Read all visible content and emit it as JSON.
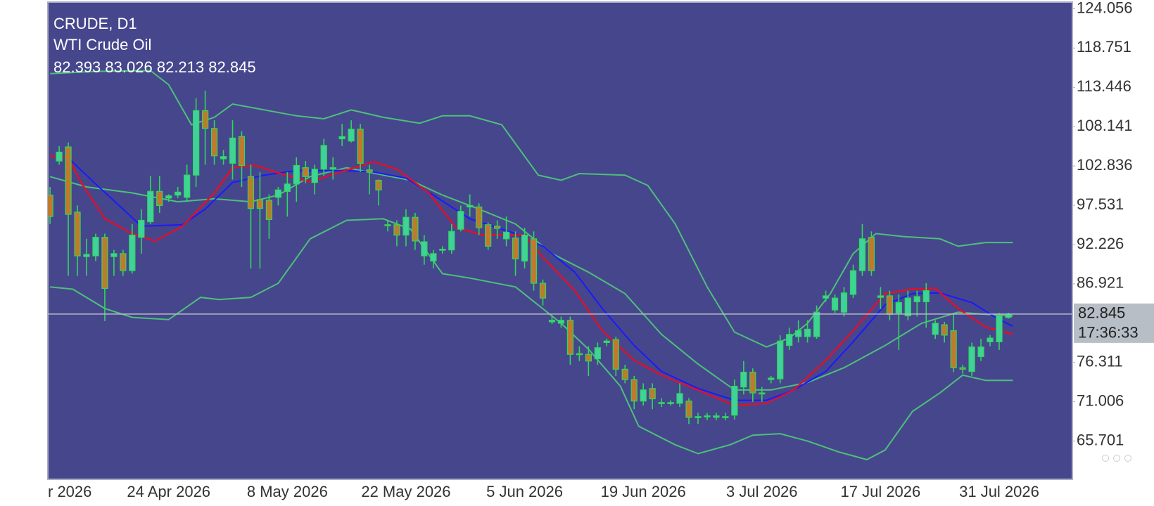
{
  "chart_data": {
    "type": "candlestick",
    "title": "CRUDE, D1",
    "subtitle": "WTI Crude Oil",
    "ohlc": [
      82.393,
      83.026,
      82.213,
      82.845
    ],
    "current_price": {
      "value": 82.845,
      "countdown": "17:36:33"
    },
    "ylim": [
      60.54,
      124.95
    ],
    "yticks": [
      124.056,
      118.751,
      113.446,
      108.141,
      102.836,
      97.531,
      92.226,
      86.921,
      76.311,
      71.006,
      65.701
    ],
    "categories": [
      "r 2026",
      null,
      null,
      null,
      null,
      null,
      null,
      null,
      null,
      null,
      null,
      null,
      null,
      "24 Apr 2026",
      null,
      null,
      null,
      null,
      null,
      null,
      null,
      null,
      null,
      null,
      null,
      null,
      "8 May 2026",
      null,
      null,
      null,
      null,
      null,
      null,
      null,
      null,
      null,
      null,
      null,
      null,
      "22 May 2026",
      null,
      null,
      null,
      null,
      null,
      null,
      null,
      null,
      null,
      null,
      null,
      null,
      "5 Jun 2026",
      null,
      null,
      null,
      null,
      null,
      null,
      null,
      null,
      null,
      null,
      null,
      null,
      "19 Jun 2026",
      null,
      null,
      null,
      null,
      null,
      null,
      null,
      null,
      null,
      null,
      null,
      null,
      "3 Jul 2026",
      null,
      null,
      null,
      null,
      null,
      null,
      null,
      null,
      null,
      null,
      null,
      null,
      "17 Jul 2026",
      null,
      null,
      null,
      null,
      null,
      null,
      null,
      null,
      null,
      null,
      null,
      null,
      "31 Jul 2026",
      null
    ],
    "up_color": "#3fd39a",
    "down_color": "#c07a2c",
    "wick_color": "#2fd85a",
    "candles": [
      [
        98.9,
        100,
        95,
        96.0
      ],
      [
        103.5,
        105.5,
        103,
        104.7
      ],
      [
        105.4,
        106,
        88,
        96.3
      ],
      [
        96.6,
        97.5,
        88,
        90.7
      ],
      [
        90.6,
        93,
        88,
        90.9
      ],
      [
        90.7,
        93.7,
        90,
        93.2
      ],
      [
        93.2,
        93.7,
        81.9,
        86.3
      ],
      [
        90.6,
        91.5,
        88,
        91
      ],
      [
        91,
        91.5,
        88,
        88.7
      ],
      [
        88.7,
        95,
        88.3,
        93.5
      ],
      [
        93.2,
        97,
        91,
        95.5
      ],
      [
        95.3,
        101.5,
        95,
        99.4
      ],
      [
        99.4,
        101.5,
        96.5,
        97.5
      ],
      [
        98.5,
        99,
        98,
        98.8
      ],
      [
        98.9,
        100,
        98.5,
        99.3
      ],
      [
        98.6,
        103,
        98,
        101.6
      ],
      [
        101.6,
        112,
        100,
        110.3
      ],
      [
        110.3,
        113,
        103,
        107.9
      ],
      [
        107.9,
        109,
        103,
        104.2
      ],
      [
        103.8,
        105,
        103,
        104.1
      ],
      [
        103.2,
        109,
        101,
        106.6
      ],
      [
        106.8,
        107.5,
        100,
        102.9
      ],
      [
        101.4,
        103,
        89,
        97.1
      ],
      [
        98.3,
        102,
        89,
        97.1
      ],
      [
        98.2,
        99,
        93,
        95.6
      ],
      [
        98.6,
        100,
        97.5,
        99.6
      ],
      [
        99.4,
        102,
        96,
        100.4
      ],
      [
        100.4,
        104,
        98,
        102.9
      ],
      [
        102.6,
        103.5,
        100.5,
        101.4
      ],
      [
        100.6,
        103,
        99,
        102.4
      ],
      [
        102.4,
        106.5,
        101.5,
        105.6
      ],
      [
        102.4,
        104,
        101,
        102.6
      ],
      [
        106.5,
        108.5,
        105.5,
        106.8
      ],
      [
        106.2,
        109,
        106,
        107.8
      ],
      [
        107.8,
        108.5,
        102,
        103.2
      ],
      [
        102.3,
        103,
        99,
        102
      ],
      [
        100.9,
        101,
        97.5,
        99.6
      ],
      [
        94.9,
        95.5,
        94,
        94.8
      ],
      [
        94.9,
        95.5,
        92,
        93.5
      ],
      [
        93.5,
        97,
        92,
        95.9
      ],
      [
        95.9,
        96.5,
        91.5,
        92.7
      ],
      [
        90.7,
        93.5,
        89.5,
        92.6
      ],
      [
        90,
        91.5,
        89,
        91
      ],
      [
        91.5,
        92,
        91,
        91.6
      ],
      [
        91.5,
        95,
        91,
        94
      ],
      [
        94.3,
        97.5,
        94,
        96.7
      ],
      [
        97.3,
        99,
        96,
        97.5
      ],
      [
        97.3,
        97.8,
        93.5,
        94.5
      ],
      [
        94.9,
        95.2,
        91.5,
        92
      ],
      [
        94.7,
        95.5,
        93,
        94.4
      ],
      [
        93,
        96,
        92,
        93.9
      ],
      [
        93.1,
        94,
        88,
        90.3
      ],
      [
        90,
        94.5,
        89,
        93.5
      ],
      [
        93,
        94,
        86,
        87
      ],
      [
        87,
        87.5,
        84,
        85
      ],
      [
        81.8,
        82.5,
        81.5,
        82
      ],
      [
        81.6,
        82.5,
        81,
        82
      ],
      [
        82,
        82.5,
        76,
        77.4
      ],
      [
        77.5,
        78.5,
        76.5,
        77.4
      ],
      [
        77.4,
        78.5,
        74.5,
        76.5
      ],
      [
        76.8,
        79,
        76,
        78.3
      ],
      [
        79,
        79.5,
        78.5,
        79.2
      ],
      [
        79.4,
        79.8,
        74.5,
        75.4
      ],
      [
        75.4,
        76,
        73.5,
        74
      ],
      [
        74,
        74.5,
        70,
        71.1
      ],
      [
        71.1,
        73.5,
        70.5,
        72.6
      ],
      [
        72.8,
        73.5,
        70,
        71.4
      ],
      [
        70.8,
        71.5,
        70.3,
        70.9
      ],
      [
        70.8,
        71.2,
        70.5,
        70.9
      ],
      [
        70.8,
        73.5,
        70.3,
        72.1
      ],
      [
        71.1,
        71.5,
        68,
        68.9
      ],
      [
        68.9,
        69.5,
        68,
        69
      ],
      [
        69,
        69.5,
        68.5,
        69.1
      ],
      [
        68.9,
        69.5,
        68.5,
        69.1
      ],
      [
        68.9,
        69.5,
        68.5,
        69
      ],
      [
        69.2,
        74,
        68.6,
        73.1
      ],
      [
        73,
        76.5,
        72,
        75
      ],
      [
        75,
        75.5,
        71,
        72.2
      ],
      [
        72.2,
        73,
        71,
        72.1
      ],
      [
        74,
        74.5,
        73.5,
        74.2
      ],
      [
        74.1,
        80,
        73.5,
        79.2
      ],
      [
        78.6,
        81,
        78,
        80.1
      ],
      [
        79.8,
        82,
        79,
        80.6
      ],
      [
        79.8,
        82,
        79,
        80.8
      ],
      [
        79.8,
        84,
        79.5,
        83.1
      ],
      [
        85,
        86,
        84.5,
        85.3
      ],
      [
        83.4,
        85.5,
        83,
        85
      ],
      [
        83.1,
        86.5,
        82.5,
        85.7
      ],
      [
        85.5,
        89.5,
        85,
        88.7
      ],
      [
        88.7,
        95,
        88,
        93
      ],
      [
        93.2,
        94,
        88,
        88.7
      ],
      [
        85.1,
        86.5,
        83.5,
        85.3
      ],
      [
        85.3,
        86,
        82,
        82.8
      ],
      [
        83,
        85.5,
        78,
        84.4
      ],
      [
        82.6,
        86,
        82,
        85
      ],
      [
        84.5,
        86,
        82.5,
        85.2
      ],
      [
        84.5,
        87,
        81,
        86
      ],
      [
        80.1,
        82,
        79.5,
        81.6
      ],
      [
        81.4,
        81.8,
        79,
        80
      ],
      [
        80.6,
        83,
        75,
        75.6
      ],
      [
        75.6,
        76,
        74.8,
        75.4
      ],
      [
        75.1,
        79,
        74.5,
        78.4
      ],
      [
        77.1,
        79.5,
        76.5,
        78.4
      ],
      [
        79.1,
        80,
        78.5,
        79.6
      ],
      [
        79.1,
        83,
        78,
        82.6
      ],
      [
        82.393,
        83.026,
        82.213,
        82.845
      ]
    ],
    "series": [
      {
        "color": "#4cc07a",
        "x": [
          0,
          5,
          11,
          13,
          15.5,
          18,
          20,
          27,
          30,
          33,
          36.5,
          40.5,
          43,
          46,
          49.5,
          53.5,
          56,
          58,
          63,
          65.5,
          68.5,
          72,
          75,
          78.5,
          81,
          83,
          85.5,
          88,
          90.5,
          93.5,
          97.5,
          99.5,
          102.5,
          105.5
        ],
        "values": [
          115.3,
          115.6,
          115.7,
          113.8,
          108.4,
          109.4,
          111.2,
          109.6,
          109.2,
          110.4,
          109.4,
          108.6,
          109.6,
          109.6,
          108.4,
          101.6,
          100.9,
          101.8,
          101.6,
          100.2,
          95.0,
          86.5,
          80.4,
          78.4,
          79.6,
          81.6,
          85.6,
          91.0,
          93.7,
          93.3,
          93.0,
          92.0,
          92.5,
          92.5
        ]
      },
      {
        "color": "#4cc07a",
        "x": [
          0,
          4,
          9,
          14,
          18,
          22,
          25,
          28.5,
          32.5,
          36.5,
          39.5,
          43,
          47,
          51,
          55,
          59,
          63,
          67,
          71,
          75,
          79,
          83,
          87,
          91.5,
          95.5,
          99.5,
          102.5,
          105.5
        ],
        "values": [
          101.4,
          100.0,
          99.2,
          98.0,
          98.4,
          98.0,
          98.9,
          101.4,
          102.6,
          101.6,
          100.9,
          98.9,
          97.0,
          95.0,
          91.0,
          88.5,
          85.6,
          80.1,
          76.1,
          72.6,
          72.6,
          73.6,
          75.6,
          78.6,
          81.6,
          83.1,
          82.8,
          82.6
        ]
      },
      {
        "color": "#4cc07a",
        "x": [
          0,
          2.5,
          6,
          9,
          13,
          16.5,
          18.5,
          22,
          25,
          28.5,
          32.5,
          36.5,
          39.5,
          43,
          46,
          51,
          56,
          59,
          62.5,
          64.5,
          68.5,
          71,
          74.5,
          77,
          80,
          83,
          86.5,
          89.5,
          91.5,
          94.5,
          97.5,
          100,
          102.5,
          105.5
        ],
        "values": [
          86.5,
          86.2,
          83.6,
          82.4,
          82.1,
          85.1,
          84.8,
          85.1,
          87.0,
          93.0,
          95.5,
          95.7,
          94.3,
          88.3,
          87.7,
          86.5,
          81.6,
          78.1,
          73.1,
          67.7,
          65.2,
          64.0,
          65.2,
          66.5,
          66.7,
          65.7,
          64.2,
          63.2,
          64.5,
          69.7,
          72.2,
          74.6,
          73.9,
          73.9
        ]
      },
      {
        "color": "#1a1aff",
        "x": [
          0,
          2,
          5,
          8,
          10,
          14.5,
          17,
          20,
          23.5,
          27,
          29,
          32.5,
          35.5,
          39,
          42,
          46,
          51,
          54,
          57.5,
          60.5,
          64,
          67,
          71,
          75,
          78.5,
          81.5,
          85,
          88,
          91.5,
          94.5,
          97.5,
          101,
          104,
          105.5
        ],
        "values": [
          104.2,
          103.9,
          100.4,
          97.0,
          94.7,
          94.9,
          97.0,
          100.6,
          101.6,
          102.2,
          102.2,
          102.2,
          102.0,
          101.2,
          98.9,
          95.7,
          93.7,
          92.0,
          88.5,
          83.6,
          78.6,
          75.1,
          72.8,
          71.2,
          71.2,
          72.6,
          75.1,
          79.1,
          84.1,
          85.6,
          85.7,
          84.4,
          82.1,
          81.2
        ]
      },
      {
        "color": "#e0102a",
        "x": [
          0,
          2,
          3.5,
          6,
          9,
          11.5,
          14.5,
          18,
          20,
          22.5,
          25,
          28.5,
          31.5,
          35.5,
          38,
          41.5,
          44.5,
          47.5,
          52,
          54,
          57.5,
          60.5,
          64,
          67,
          71,
          75,
          78.5,
          81.5,
          85,
          88,
          91.5,
          94.5,
          97,
          99.5,
          102.5,
          105.5
        ],
        "values": [
          104.2,
          103.9,
          100.4,
          95.7,
          93.7,
          92.7,
          94.7,
          99.2,
          102.6,
          102.9,
          101.9,
          100.7,
          101.9,
          103.4,
          102.4,
          99.2,
          94.5,
          93.5,
          93.5,
          90.5,
          86.0,
          80.6,
          76.6,
          74.6,
          72.6,
          70.5,
          70.8,
          72.6,
          76.6,
          80.6,
          85.6,
          86.2,
          86.3,
          83.6,
          81.1,
          80.1
        ]
      }
    ]
  }
}
